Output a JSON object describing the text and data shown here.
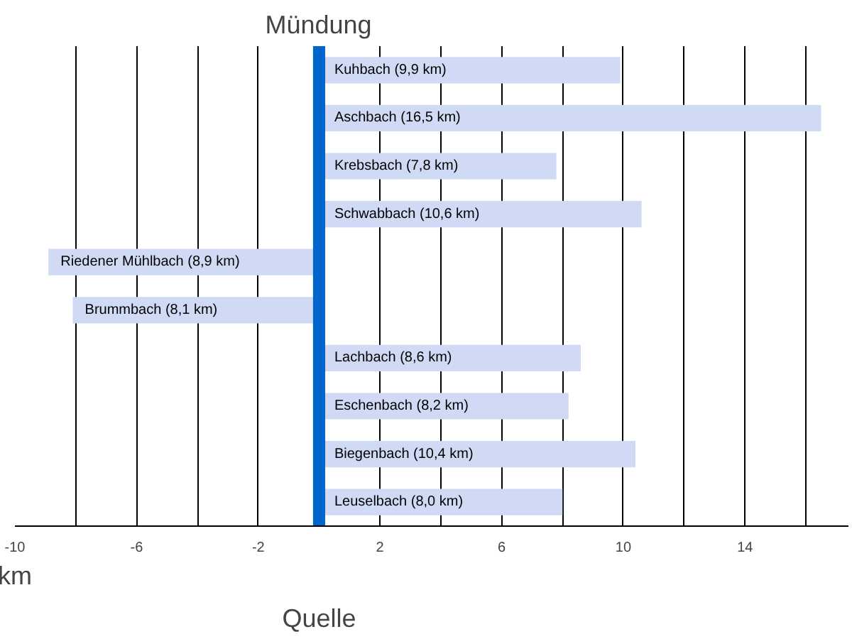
{
  "chart_data": {
    "type": "bar",
    "orientation": "horizontal",
    "title": "Mündung",
    "xlabel": "km",
    "annotations": [
      "Quelle"
    ],
    "categories": [
      "Kuhbach (9,9 km)",
      "Aschbach (16,5 km)",
      "Krebsbach (7,8 km)",
      "Schwabbach (10,6 km)",
      "Riedener Mühlbach (8,9 km)",
      "Brummbach (8,1 km)",
      "Lachbach (8,6 km)",
      "Eschenbach (8,2 km)",
      "Biegenbach (10,4 km)",
      "Leuselbach (8,0 km)"
    ],
    "values": [
      9.9,
      16.5,
      7.8,
      10.6,
      -8.9,
      -8.1,
      8.6,
      8.2,
      10.4,
      8.0
    ],
    "color": "#d0daf5",
    "xlim": [
      -10,
      17.4
    ],
    "xticks": [
      -10,
      {
        "value": -8,
        "label": null
      },
      -6,
      {
        "value": -4,
        "label": null
      },
      -2,
      {
        "value": 0,
        "label": null
      },
      2,
      {
        "value": 4,
        "label": null
      },
      6,
      {
        "value": 8,
        "label": null
      },
      10,
      {
        "value": 12,
        "label": null
      },
      14,
      {
        "value": 16,
        "label": null
      }
    ],
    "bands": [
      {
        "axis": "x",
        "from": -0.2,
        "to": 0.2,
        "color": "#0066cc"
      }
    ],
    "grid": "x"
  }
}
